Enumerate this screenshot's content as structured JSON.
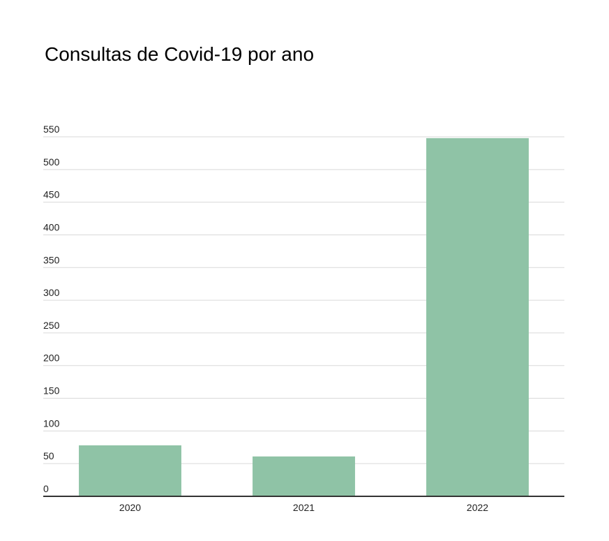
{
  "chart_data": {
    "type": "bar",
    "title": "Consultas de Covid-19 por ano",
    "categories": [
      "2020",
      "2021",
      "2022"
    ],
    "values": [
      78,
      61,
      548
    ],
    "xlabel": "",
    "ylabel": "",
    "ylim": [
      0,
      550
    ],
    "yticks": [
      0,
      50,
      100,
      150,
      200,
      250,
      300,
      350,
      400,
      450,
      500,
      550
    ],
    "grid": true,
    "legend": "none",
    "bar_color": "#8fc3a6"
  }
}
